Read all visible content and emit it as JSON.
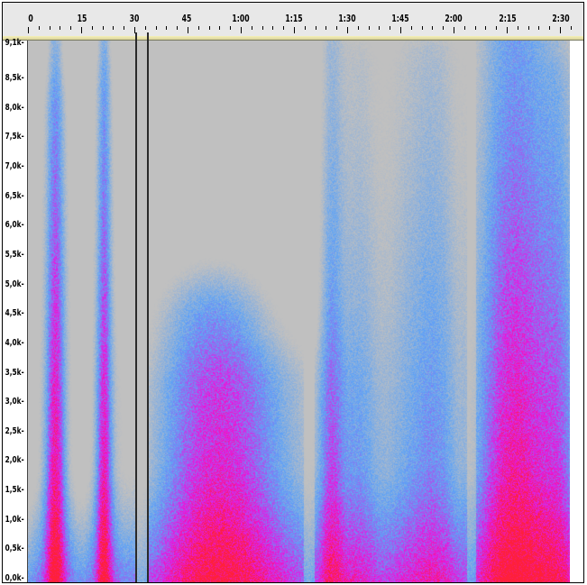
{
  "window": {
    "title": ""
  },
  "time_ruler": {
    "labels": [
      "0",
      "15",
      "30",
      "45",
      "1:00",
      "1:15",
      "1:30",
      "1:45",
      "2:00",
      "2:15",
      "2:30"
    ]
  },
  "frequency_axis": {
    "labels": [
      "9,1k",
      "8,5k",
      "8,0k",
      "7,5k",
      "7,0k",
      "6,5k",
      "6,0k",
      "5,5k",
      "5,0k",
      "4,5k",
      "4,0k",
      "3,5k",
      "3,0k",
      "2,5k",
      "2,0k",
      "1,5k",
      "1,0k",
      "0,5k",
      "0,0k"
    ]
  },
  "spectrogram": {
    "colors": {
      "background": "#c0c0c0",
      "low": "#5aa0f0",
      "mid": "#e020e0",
      "high": "#ff1030"
    }
  },
  "selection": {
    "start_label": "",
    "end_label": ""
  }
}
